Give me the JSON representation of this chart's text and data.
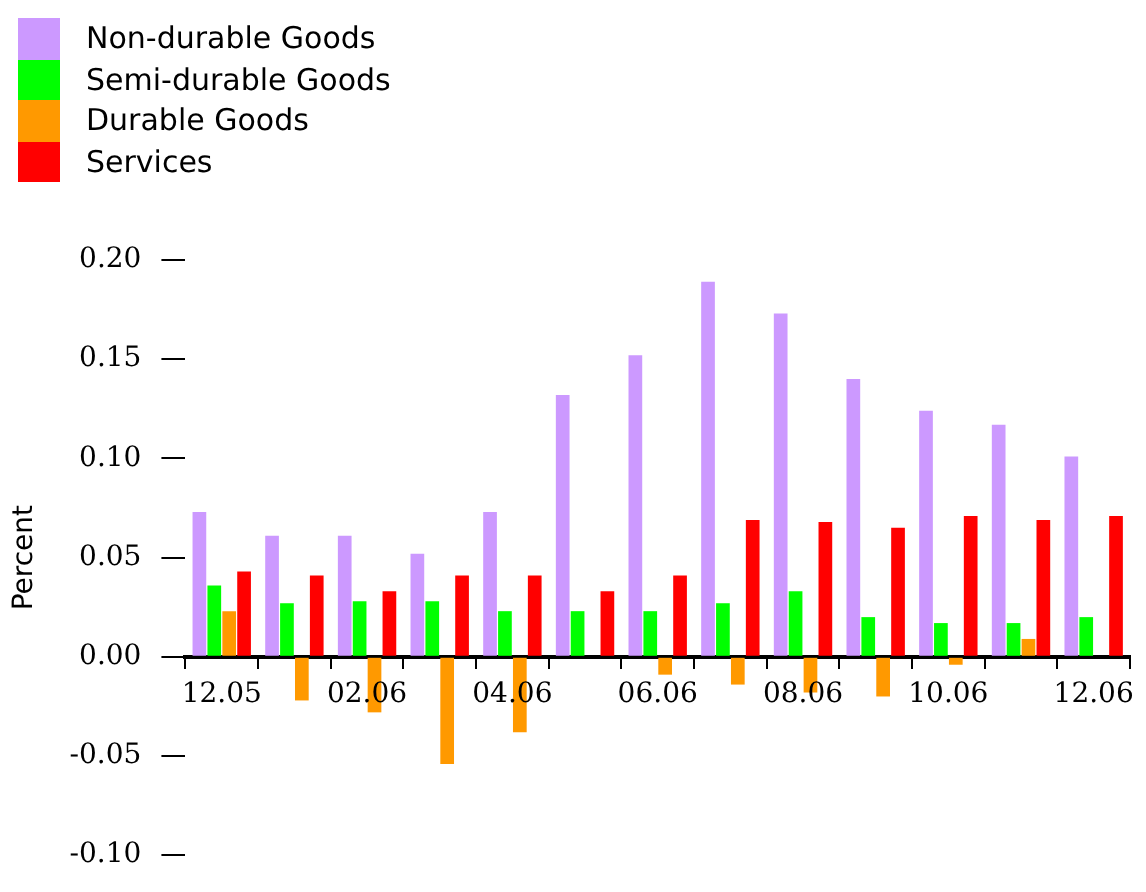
{
  "chart_data": {
    "type": "bar",
    "ylabel": "Percent",
    "categories": [
      "12.05",
      null,
      "02.06",
      null,
      "04.06",
      null,
      "06.06",
      null,
      "08.06",
      null,
      "10.06",
      null,
      "12.06"
    ],
    "series": [
      {
        "name": "Non-durable Goods",
        "color": "#cc99ff",
        "values": [
          0.073,
          0.061,
          0.061,
          0.052,
          0.073,
          0.132,
          0.152,
          0.189,
          0.173,
          0.14,
          0.124,
          0.117,
          0.101
        ]
      },
      {
        "name": "Semi-durable Goods",
        "color": "#00ff00",
        "values": [
          0.036,
          0.027,
          0.028,
          0.028,
          0.023,
          0.023,
          0.023,
          0.027,
          0.033,
          0.02,
          0.017,
          0.017,
          0.02
        ]
      },
      {
        "name": "Durable Goods",
        "color": "#ff9900",
        "values": [
          0.023,
          -0.022,
          -0.028,
          -0.054,
          -0.038,
          null,
          -0.009,
          -0.014,
          -0.018,
          -0.02,
          -0.004,
          0.009,
          null
        ]
      },
      {
        "name": "Services",
        "color": "#ff0000",
        "values": [
          0.043,
          0.041,
          0.033,
          0.041,
          0.041,
          0.033,
          0.041,
          0.069,
          0.068,
          0.065,
          0.071,
          0.069,
          0.071
        ]
      }
    ],
    "ylim": [
      -0.1,
      0.2
    ],
    "yticks": [
      {
        "value": -0.1,
        "label": "-0.10"
      },
      {
        "value": -0.05,
        "label": "-0.05"
      },
      {
        "value": 0,
        "label": "0.00"
      },
      {
        "value": 0.05,
        "label": "0.05"
      },
      {
        "value": 0.1,
        "label": "0.10"
      },
      {
        "value": 0.15,
        "label": "0.15"
      },
      {
        "value": 0.2,
        "label": "0.20"
      }
    ],
    "grid": false,
    "legend": "top left"
  }
}
